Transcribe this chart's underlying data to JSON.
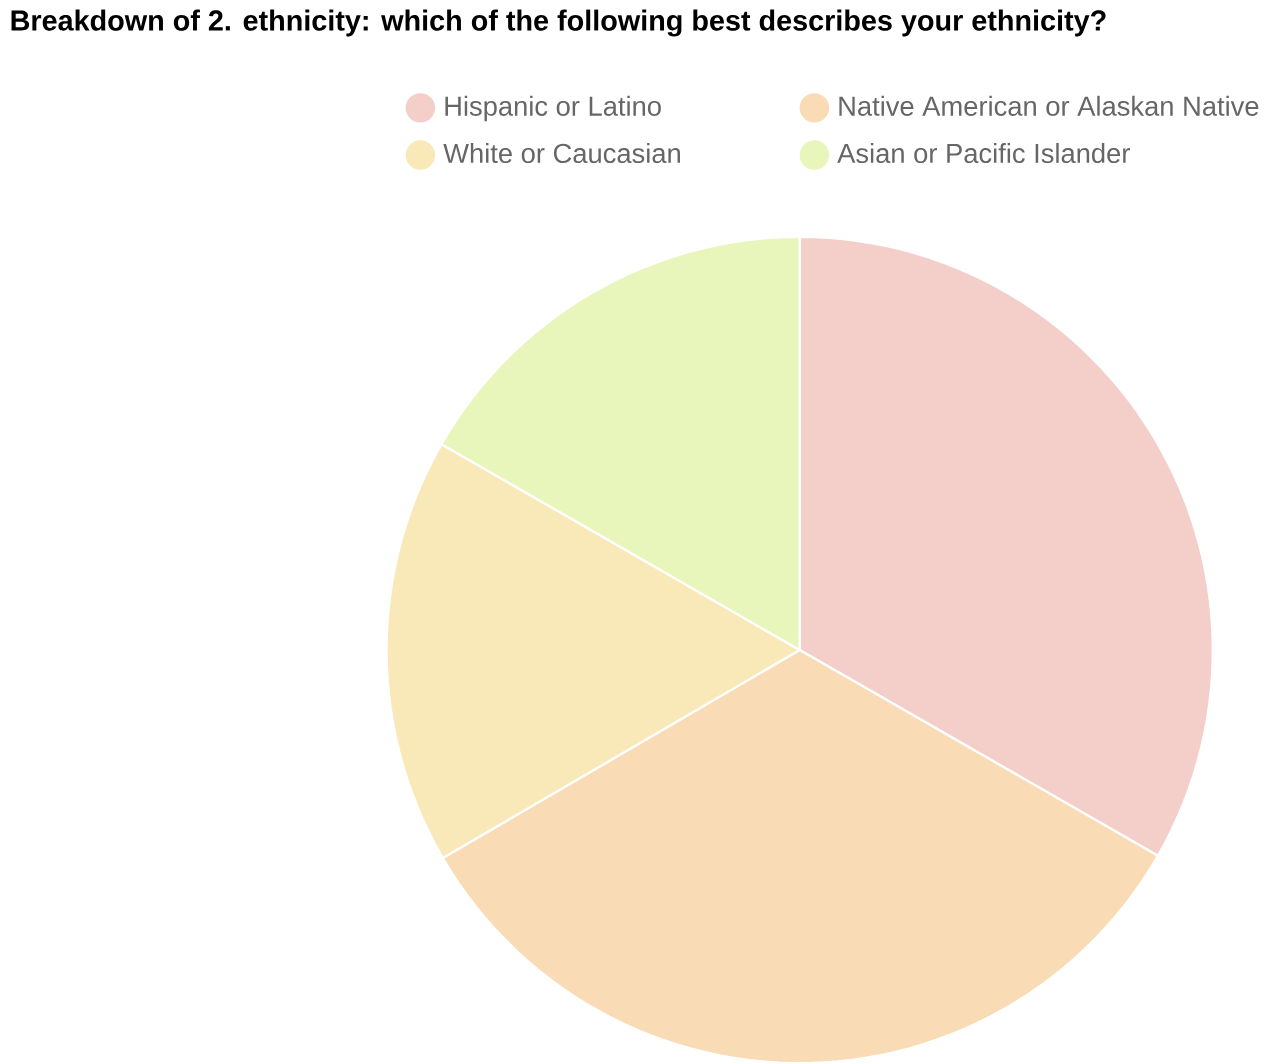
{
  "chart_data": {
    "type": "pie",
    "title": "Breakdown of 2. ethnicity: which of the following best describes your ethnicity?",
    "categories": [
      "Hispanic or Latino",
      "Native American or Alaskan Native",
      "White or Caucasian",
      "Asian or Pacific Islander"
    ],
    "values": [
      33.3,
      33.3,
      16.7,
      16.7
    ],
    "colors": [
      "#f4cfca",
      "#f9dbb5",
      "#f9e8b8",
      "#e8f5bb"
    ],
    "legend": "top"
  }
}
